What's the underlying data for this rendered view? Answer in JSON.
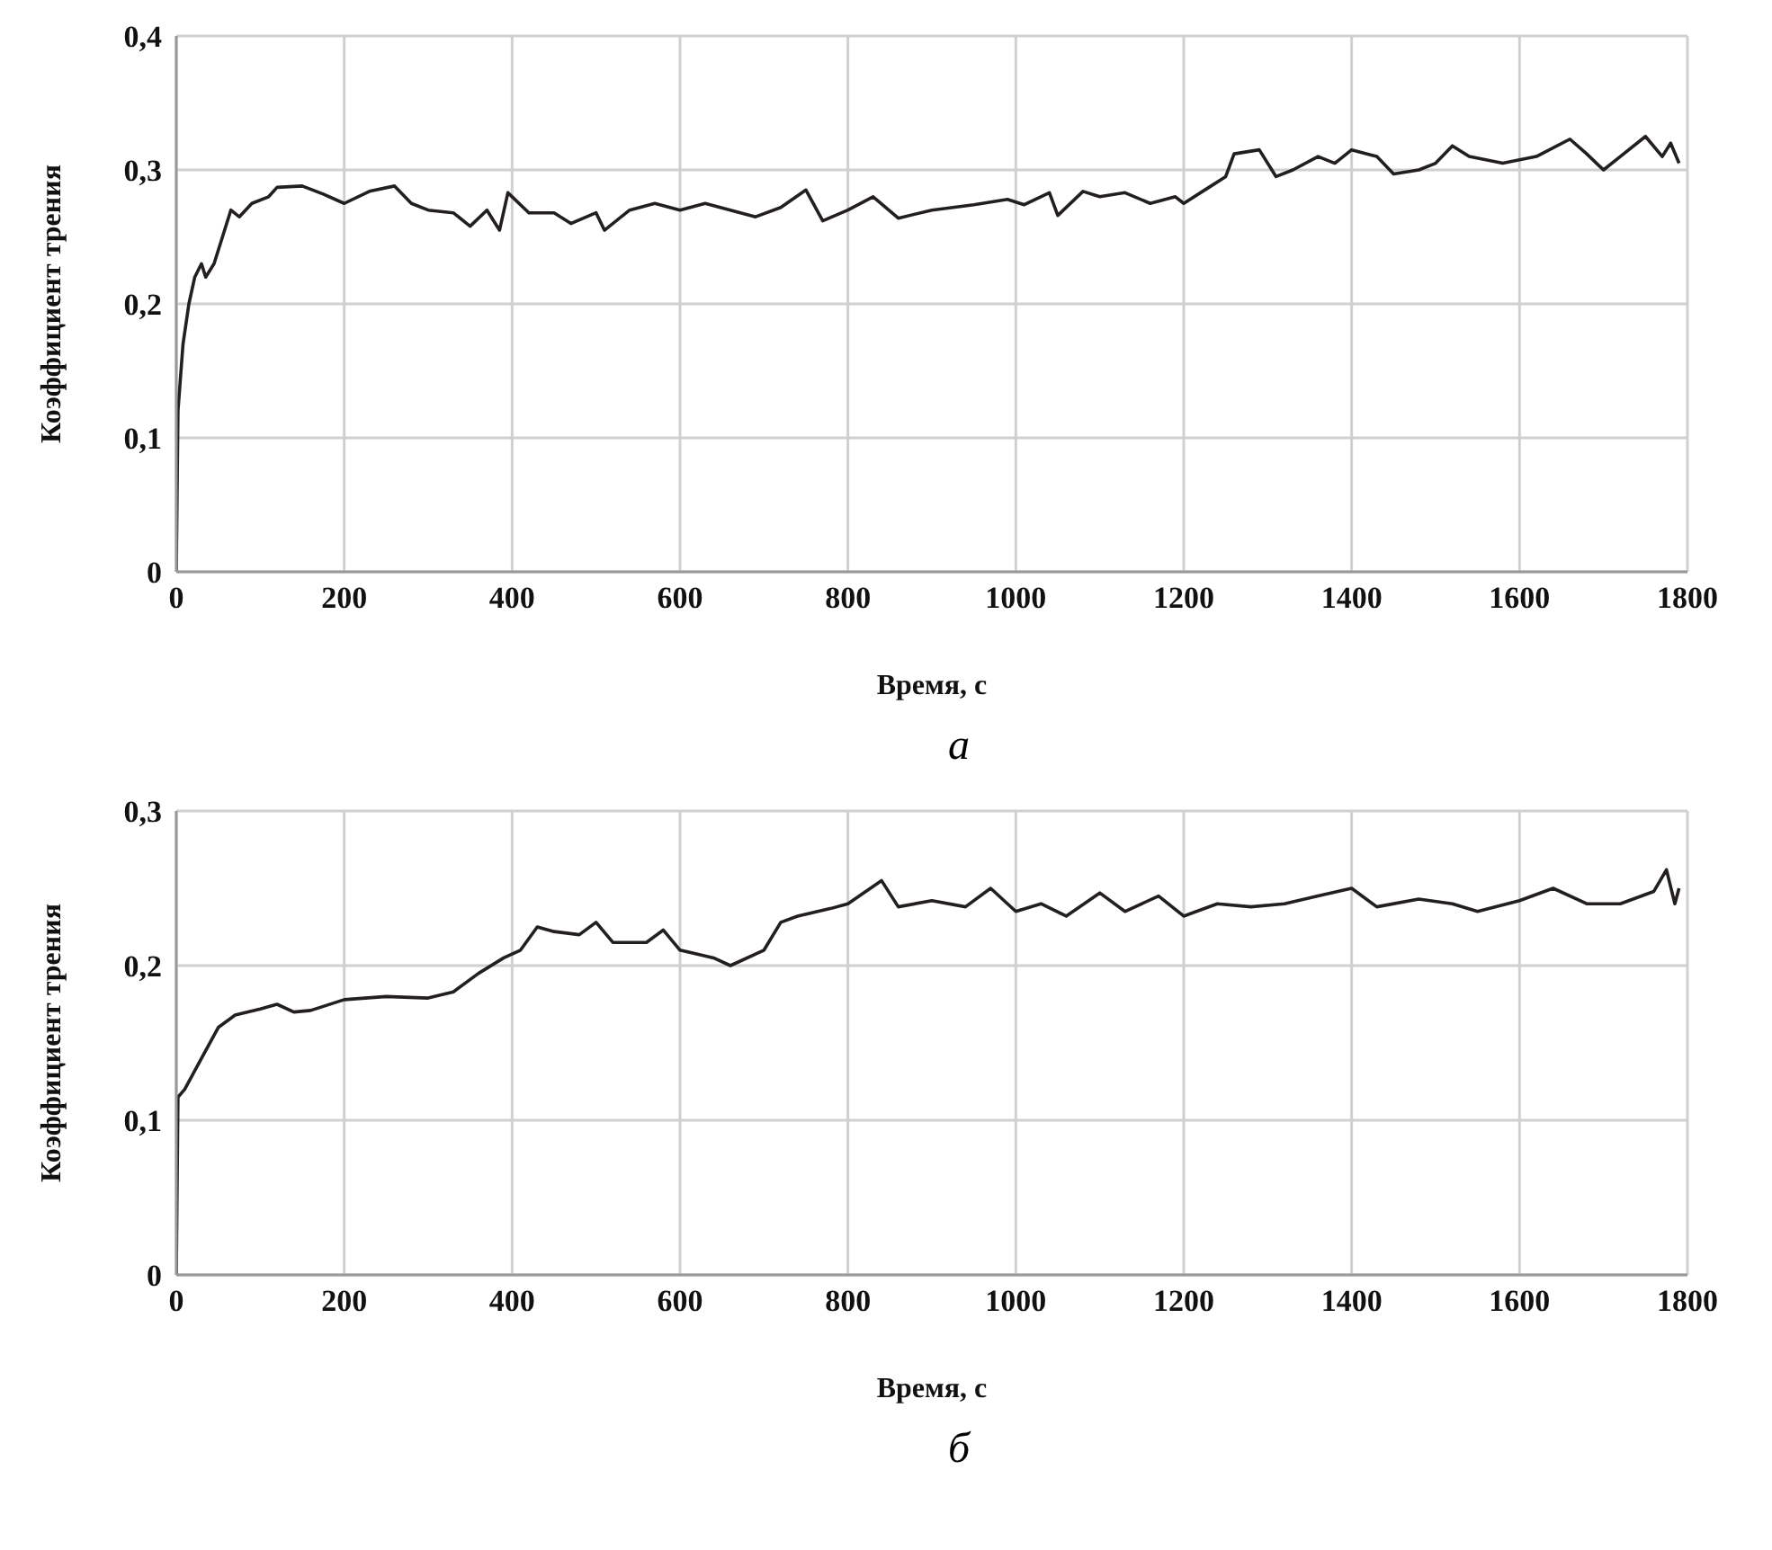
{
  "chart_data": [
    {
      "type": "line",
      "xlabel": "Время, с",
      "ylabel": "Коэффициент трения",
      "annotations": [
        "а"
      ],
      "grid": true,
      "legend": false,
      "xlim": [
        0,
        1800
      ],
      "xticks": [
        0,
        200,
        400,
        600,
        800,
        1000,
        1200,
        1400,
        1600,
        1800
      ],
      "ylim": [
        0,
        0.4
      ],
      "yticks": [
        {
          "value": 0,
          "label": "0"
        },
        {
          "value": 0.1,
          "label": "0,1"
        },
        {
          "value": 0.2,
          "label": "0,2"
        },
        {
          "value": 0.3,
          "label": "0,3"
        },
        {
          "value": 0.4,
          "label": "0,4"
        }
      ],
      "series": [
        {
          "color": "#231f20",
          "x": [
            0,
            2,
            8,
            15,
            22,
            30,
            35,
            45,
            55,
            65,
            75,
            90,
            110,
            120,
            150,
            175,
            200,
            230,
            260,
            280,
            300,
            330,
            350,
            370,
            385,
            395,
            420,
            450,
            470,
            500,
            510,
            540,
            570,
            600,
            630,
            660,
            690,
            720,
            750,
            770,
            800,
            830,
            860,
            900,
            950,
            990,
            1010,
            1040,
            1050,
            1080,
            1100,
            1130,
            1160,
            1190,
            1200,
            1230,
            1250,
            1260,
            1290,
            1310,
            1330,
            1360,
            1380,
            1400,
            1430,
            1450,
            1480,
            1500,
            1520,
            1540,
            1580,
            1620,
            1660,
            1680,
            1700,
            1720,
            1750,
            1770,
            1780,
            1790
          ],
          "values": [
            0,
            0.12,
            0.17,
            0.2,
            0.22,
            0.23,
            0.22,
            0.23,
            0.25,
            0.27,
            0.265,
            0.275,
            0.28,
            0.287,
            0.288,
            0.282,
            0.275,
            0.284,
            0.288,
            0.275,
            0.27,
            0.268,
            0.258,
            0.27,
            0.255,
            0.283,
            0.268,
            0.268,
            0.26,
            0.268,
            0.255,
            0.27,
            0.275,
            0.27,
            0.275,
            0.27,
            0.265,
            0.272,
            0.285,
            0.262,
            0.27,
            0.28,
            0.264,
            0.27,
            0.274,
            0.278,
            0.274,
            0.283,
            0.266,
            0.284,
            0.28,
            0.283,
            0.275,
            0.28,
            0.275,
            0.287,
            0.295,
            0.312,
            0.315,
            0.295,
            0.3,
            0.31,
            0.305,
            0.315,
            0.31,
            0.297,
            0.3,
            0.305,
            0.318,
            0.31,
            0.305,
            0.31,
            0.323,
            0.312,
            0.3,
            0.31,
            0.325,
            0.31,
            0.32,
            0.305
          ]
        }
      ]
    },
    {
      "type": "line",
      "xlabel": "Время, с",
      "ylabel": "Коэффициент трения",
      "annotations": [
        "б"
      ],
      "grid": true,
      "legend": false,
      "xlim": [
        0,
        1800
      ],
      "xticks": [
        0,
        200,
        400,
        600,
        800,
        1000,
        1200,
        1400,
        1600,
        1800
      ],
      "ylim": [
        0,
        0.3
      ],
      "yticks": [
        {
          "value": 0,
          "label": "0"
        },
        {
          "value": 0.1,
          "label": "0,1"
        },
        {
          "value": 0.2,
          "label": "0,2"
        },
        {
          "value": 0.3,
          "label": "0,3"
        }
      ],
      "series": [
        {
          "color": "#231f20",
          "x": [
            0,
            2,
            10,
            30,
            50,
            70,
            100,
            120,
            140,
            160,
            200,
            250,
            300,
            330,
            360,
            390,
            410,
            430,
            450,
            480,
            500,
            520,
            560,
            580,
            600,
            640,
            660,
            700,
            720,
            740,
            780,
            800,
            840,
            860,
            900,
            940,
            970,
            1000,
            1030,
            1060,
            1100,
            1130,
            1170,
            1200,
            1240,
            1280,
            1320,
            1360,
            1400,
            1430,
            1480,
            1520,
            1550,
            1600,
            1640,
            1680,
            1720,
            1760,
            1775,
            1785,
            1790
          ],
          "values": [
            0,
            0.115,
            0.12,
            0.14,
            0.16,
            0.168,
            0.172,
            0.175,
            0.17,
            0.171,
            0.178,
            0.18,
            0.179,
            0.183,
            0.195,
            0.205,
            0.21,
            0.225,
            0.222,
            0.22,
            0.228,
            0.215,
            0.215,
            0.223,
            0.21,
            0.205,
            0.2,
            0.21,
            0.228,
            0.232,
            0.237,
            0.24,
            0.255,
            0.238,
            0.242,
            0.238,
            0.25,
            0.235,
            0.24,
            0.232,
            0.247,
            0.235,
            0.245,
            0.232,
            0.24,
            0.238,
            0.24,
            0.245,
            0.25,
            0.238,
            0.243,
            0.24,
            0.235,
            0.242,
            0.25,
            0.24,
            0.24,
            0.248,
            0.262,
            0.24,
            0.25
          ]
        }
      ]
    }
  ]
}
